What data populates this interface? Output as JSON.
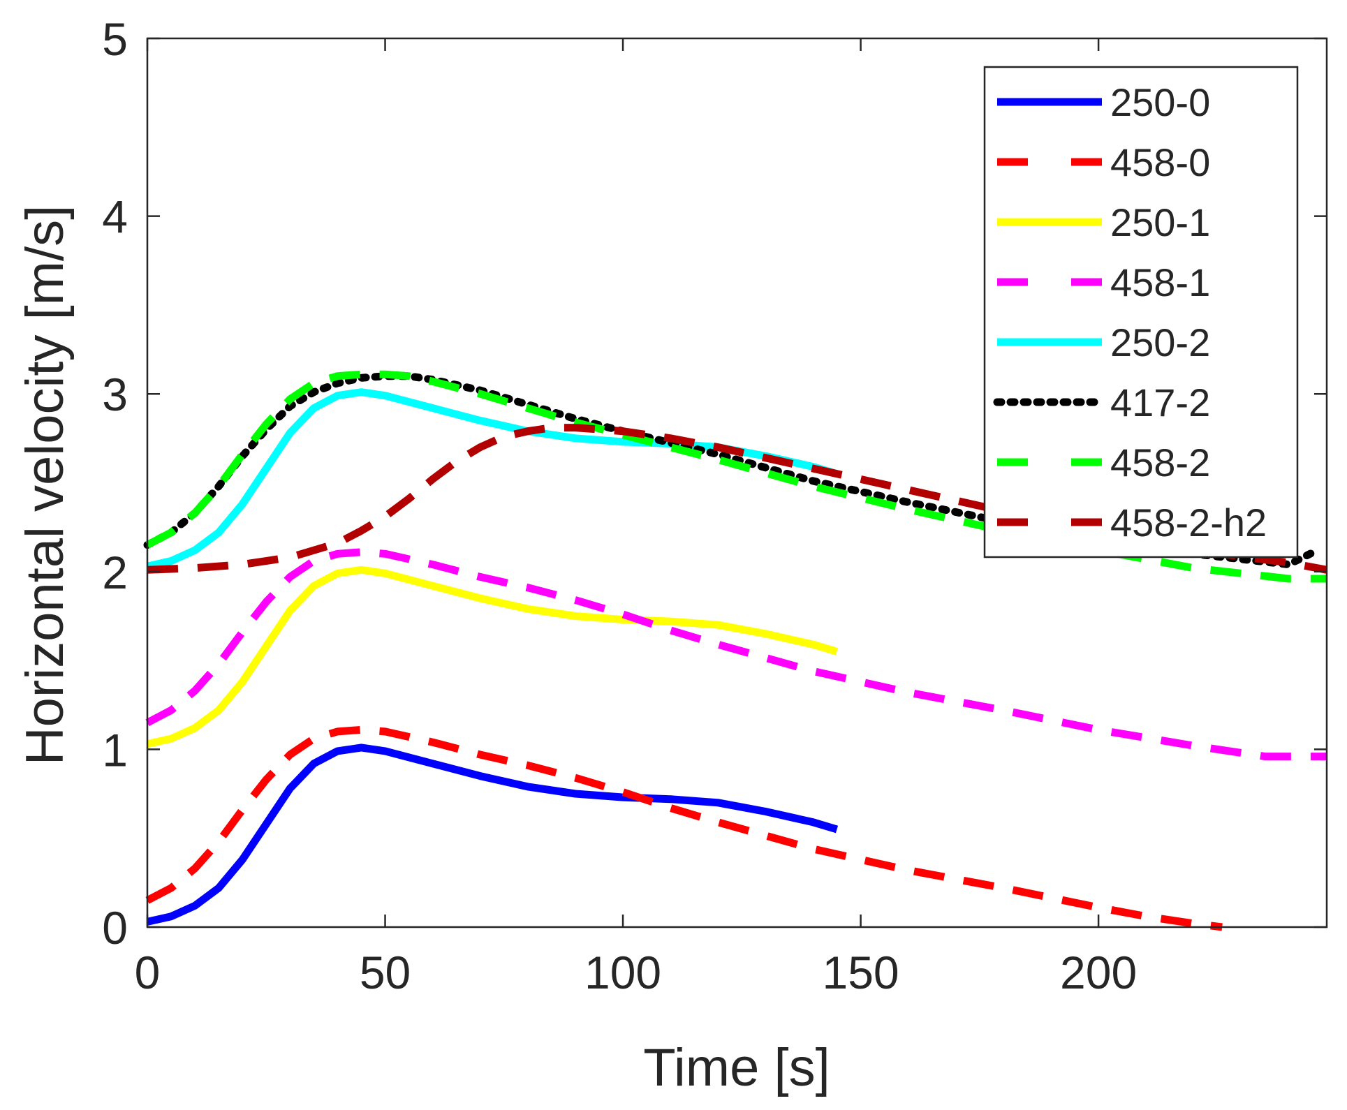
{
  "chart_data": {
    "type": "line",
    "xlabel": "Time [s]",
    "ylabel": "Horizontal velocity [m/s]",
    "xlim": [
      0,
      248
    ],
    "ylim": [
      0,
      5
    ],
    "xticks": [
      0,
      50,
      100,
      150,
      200
    ],
    "yticks": [
      0,
      1,
      2,
      3,
      4,
      5
    ],
    "grid": false,
    "box": true,
    "legend_position": "top-right",
    "series": [
      {
        "name": "250-0",
        "color": "#0000ff",
        "style": "solid",
        "x": [
          0,
          5,
          10,
          15,
          20,
          25,
          30,
          35,
          40,
          45,
          50,
          60,
          70,
          80,
          90,
          100,
          110,
          120,
          130,
          140,
          145
        ],
        "y": [
          0.03,
          0.06,
          0.12,
          0.22,
          0.38,
          0.58,
          0.78,
          0.92,
          0.99,
          1.01,
          0.99,
          0.92,
          0.85,
          0.79,
          0.75,
          0.73,
          0.72,
          0.7,
          0.65,
          0.59,
          0.55
        ]
      },
      {
        "name": "458-0",
        "color": "#ff0000",
        "style": "dashed",
        "x": [
          0,
          5,
          10,
          15,
          20,
          25,
          30,
          35,
          40,
          45,
          50,
          60,
          70,
          80,
          90,
          100,
          110,
          120,
          140,
          160,
          180,
          200,
          210,
          220,
          226
        ],
        "y": [
          0.15,
          0.22,
          0.33,
          0.48,
          0.66,
          0.83,
          0.97,
          1.06,
          1.1,
          1.11,
          1.1,
          1.04,
          0.97,
          0.91,
          0.84,
          0.76,
          0.67,
          0.59,
          0.44,
          0.32,
          0.22,
          0.11,
          0.06,
          0.02,
          0.0
        ]
      },
      {
        "name": "250-1",
        "color": "#ffff00",
        "style": "solid",
        "x": [
          0,
          5,
          10,
          15,
          20,
          25,
          30,
          35,
          40,
          45,
          50,
          60,
          70,
          80,
          90,
          100,
          110,
          120,
          130,
          140,
          145
        ],
        "y": [
          1.03,
          1.06,
          1.12,
          1.22,
          1.38,
          1.58,
          1.78,
          1.92,
          1.99,
          2.01,
          1.99,
          1.92,
          1.85,
          1.79,
          1.75,
          1.73,
          1.72,
          1.7,
          1.65,
          1.59,
          1.55
        ]
      },
      {
        "name": "458-1",
        "color": "#ff00ff",
        "style": "dashed",
        "x": [
          0,
          5,
          10,
          15,
          20,
          25,
          30,
          35,
          40,
          45,
          50,
          60,
          70,
          80,
          90,
          100,
          110,
          120,
          140,
          160,
          180,
          200,
          220,
          235,
          248
        ],
        "y": [
          1.15,
          1.22,
          1.33,
          1.48,
          1.66,
          1.83,
          1.97,
          2.06,
          2.1,
          2.11,
          2.1,
          2.04,
          1.97,
          1.91,
          1.84,
          1.76,
          1.67,
          1.59,
          1.44,
          1.32,
          1.22,
          1.11,
          1.02,
          0.96,
          0.96
        ]
      },
      {
        "name": "250-2",
        "color": "#00ffff",
        "style": "solid",
        "x": [
          0,
          5,
          10,
          15,
          20,
          25,
          30,
          35,
          40,
          45,
          50,
          60,
          70,
          80,
          90,
          100,
          110,
          120,
          130,
          140,
          145
        ],
        "y": [
          2.03,
          2.06,
          2.12,
          2.22,
          2.38,
          2.58,
          2.78,
          2.92,
          2.99,
          3.01,
          2.99,
          2.92,
          2.85,
          2.79,
          2.75,
          2.73,
          2.72,
          2.7,
          2.65,
          2.59,
          2.55
        ]
      },
      {
        "name": "417-2",
        "color": "#000000",
        "style": "dotted",
        "x": [
          0,
          5,
          10,
          15,
          20,
          25,
          30,
          35,
          40,
          45,
          50,
          55,
          60,
          70,
          80,
          90,
          100,
          120,
          140,
          160,
          180,
          200,
          220,
          240,
          246
        ],
        "y": [
          2.15,
          2.22,
          2.33,
          2.48,
          2.65,
          2.8,
          2.93,
          3.01,
          3.06,
          3.09,
          3.1,
          3.1,
          3.08,
          3.02,
          2.94,
          2.86,
          2.79,
          2.66,
          2.51,
          2.39,
          2.28,
          2.18,
          2.1,
          2.04,
          2.12
        ]
      },
      {
        "name": "458-2",
        "color": "#00ff00",
        "style": "dashed",
        "x": [
          0,
          5,
          10,
          15,
          20,
          25,
          30,
          35,
          40,
          45,
          50,
          55,
          60,
          70,
          80,
          90,
          100,
          120,
          140,
          160,
          180,
          200,
          220,
          240,
          248
        ],
        "y": [
          2.15,
          2.22,
          2.33,
          2.48,
          2.66,
          2.83,
          2.97,
          3.06,
          3.1,
          3.11,
          3.11,
          3.1,
          3.07,
          3.0,
          2.92,
          2.84,
          2.77,
          2.63,
          2.48,
          2.35,
          2.23,
          2.12,
          2.02,
          1.96,
          1.96
        ]
      },
      {
        "name": "458-2-h2",
        "color": "#b20000",
        "style": "dashed",
        "x": [
          0,
          10,
          20,
          30,
          40,
          45,
          50,
          55,
          60,
          65,
          70,
          75,
          80,
          85,
          90,
          95,
          100,
          110,
          120,
          140,
          160,
          180,
          200,
          220,
          240,
          248
        ],
        "y": [
          2.01,
          2.02,
          2.04,
          2.08,
          2.16,
          2.23,
          2.31,
          2.41,
          2.52,
          2.62,
          2.7,
          2.76,
          2.79,
          2.81,
          2.81,
          2.8,
          2.79,
          2.75,
          2.7,
          2.58,
          2.46,
          2.34,
          2.22,
          2.12,
          2.05,
          2.01
        ]
      }
    ]
  }
}
